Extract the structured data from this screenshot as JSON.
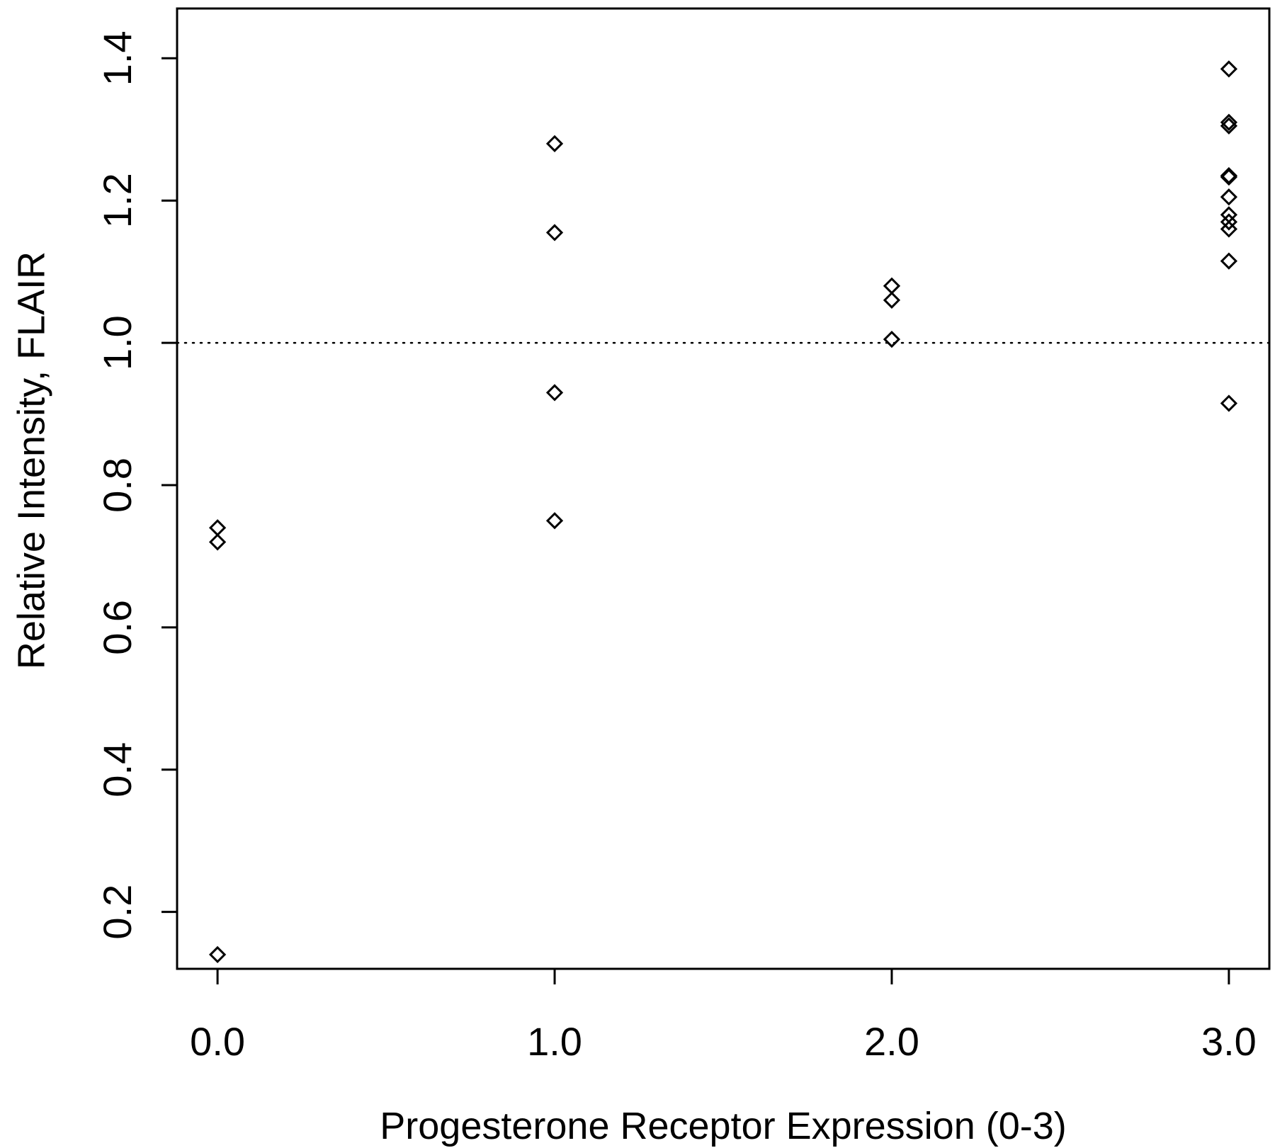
{
  "chart_data": {
    "type": "scatter",
    "title": "",
    "xlabel": "Progesterone Receptor Expression (0-3)",
    "ylabel": "Relative Intensity, FLAIR",
    "xlim": [
      -0.12,
      3.12
    ],
    "ylim": [
      0.12,
      1.47
    ],
    "x_ticks": [
      0,
      1,
      2,
      3
    ],
    "x_tick_labels": [
      "0.0",
      "1.0",
      "2.0",
      "3.0"
    ],
    "y_ticks": [
      0.2,
      0.4,
      0.6,
      0.8,
      1.0,
      1.2,
      1.4
    ],
    "y_tick_labels": [
      "0.2",
      "0.4",
      "0.6",
      "0.8",
      "1.0",
      "1.2",
      "1.4"
    ],
    "grid": false,
    "reference_line": {
      "y": 1.0,
      "style": "dotted"
    },
    "marker": "open-diamond",
    "points": [
      {
        "x": 0,
        "y": 0.74
      },
      {
        "x": 0,
        "y": 0.72
      },
      {
        "x": 0,
        "y": 0.14
      },
      {
        "x": 1,
        "y": 1.28
      },
      {
        "x": 1,
        "y": 1.155
      },
      {
        "x": 1,
        "y": 0.93
      },
      {
        "x": 1,
        "y": 0.75
      },
      {
        "x": 2,
        "y": 1.08
      },
      {
        "x": 2,
        "y": 1.06
      },
      {
        "x": 2,
        "y": 1.005
      },
      {
        "x": 3,
        "y": 1.385
      },
      {
        "x": 3,
        "y": 1.31
      },
      {
        "x": 3,
        "y": 1.305
      },
      {
        "x": 3,
        "y": 1.235
      },
      {
        "x": 3,
        "y": 1.233
      },
      {
        "x": 3,
        "y": 1.205
      },
      {
        "x": 3,
        "y": 1.18
      },
      {
        "x": 3,
        "y": 1.17
      },
      {
        "x": 3,
        "y": 1.16
      },
      {
        "x": 3,
        "y": 1.115
      },
      {
        "x": 3,
        "y": 0.915
      }
    ],
    "colors": {
      "axis": "#000000",
      "marker": "#000000",
      "background": "#ffffff"
    }
  }
}
